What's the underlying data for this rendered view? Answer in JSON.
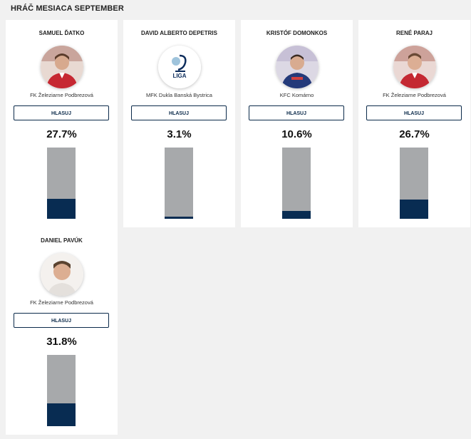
{
  "page": {
    "title": "HRÁČ MESIACA SEPTEMBER"
  },
  "vote_label": "HLASUJ",
  "colors": {
    "bar_bg": "#a7a9ab",
    "bar_fill": "#082c52",
    "button_border": "#0b2a4a"
  },
  "players": [
    {
      "name": "SAMUEL ĎATKO",
      "club": "FK Železiarne Podbrezová",
      "percent": "27.7%",
      "share": 0.277,
      "avatar": "player-photo"
    },
    {
      "name": "DAVID ALBERTO DEPETRIS",
      "club": "MFK Dukla Banská Bystrica",
      "percent": "3.1%",
      "share": 0.031,
      "avatar": "liga-logo"
    },
    {
      "name": "KRISTÓF DOMONKOS",
      "club": "KFC Komárno",
      "percent": "10.6%",
      "share": 0.106,
      "avatar": "player-photo"
    },
    {
      "name": "RENÉ PARAJ",
      "club": "FK Železiarne Podbrezová",
      "percent": "26.7%",
      "share": 0.267,
      "avatar": "player-photo"
    },
    {
      "name": "DANIEL PAVÚK",
      "club": "FK Železiarne Podbrezová",
      "percent": "31.8%",
      "share": 0.318,
      "avatar": "player-photo"
    }
  ]
}
